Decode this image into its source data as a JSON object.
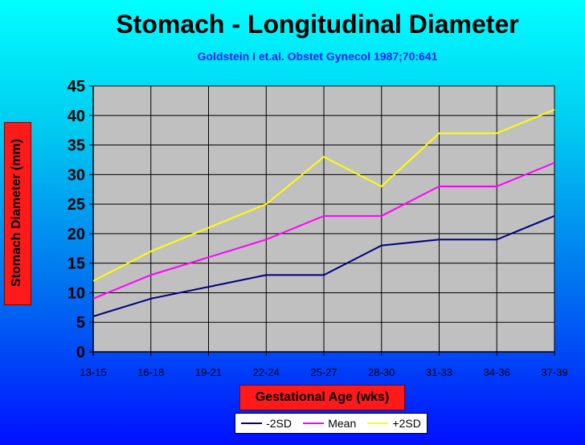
{
  "chart_data": {
    "type": "line",
    "title": "Stomach - Longitudinal Diameter",
    "subtitle": "Goldstein I et.al. Obstet Gynecol 1987;70:641",
    "xlabel": "Gestational Age (wks)",
    "ylabel": "Stomach Diameter (mm)",
    "categories": [
      "13-15",
      "16-18",
      "19-21",
      "22-24",
      "25-27",
      "28-30",
      "31-33",
      "34-36",
      "37-39"
    ],
    "ylim": [
      0,
      45
    ],
    "yticks": [
      0,
      5,
      10,
      15,
      20,
      25,
      30,
      35,
      40,
      45
    ],
    "grid": true,
    "legend_position": "bottom",
    "series": [
      {
        "name": "-2SD",
        "color": "#000080",
        "values": [
          6,
          9,
          11,
          13,
          13,
          18,
          19,
          19,
          23
        ]
      },
      {
        "name": "Mean",
        "color": "#ff00ff",
        "values": [
          9,
          13,
          16,
          19,
          23,
          23,
          28,
          28,
          32
        ]
      },
      {
        "name": "+2SD",
        "color": "#ffff00",
        "values": [
          12,
          17,
          21,
          25,
          33,
          28,
          37,
          37,
          41
        ]
      }
    ]
  }
}
